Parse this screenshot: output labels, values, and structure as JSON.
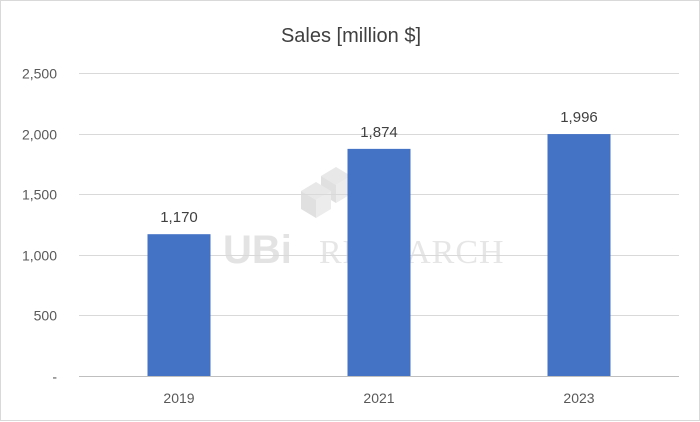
{
  "chart_data": {
    "type": "bar",
    "title": "Sales [million $]",
    "categories": [
      "2019",
      "2021",
      "2023"
    ],
    "values": [
      1170,
      1874,
      1996
    ],
    "value_labels": [
      "1,170",
      "1,874",
      "1,996"
    ],
    "ylim": [
      0,
      2500
    ],
    "yticks": [
      0,
      500,
      1000,
      1500,
      2000,
      2500
    ],
    "ytick_labels": [
      "-",
      "500",
      "1,000",
      "1,500",
      "2,000",
      "2,500"
    ],
    "xlabel": "",
    "ylabel": "",
    "grid": true,
    "legend": "none",
    "bar_color": "#4472c4",
    "watermark": "UBI RESEARCH"
  }
}
